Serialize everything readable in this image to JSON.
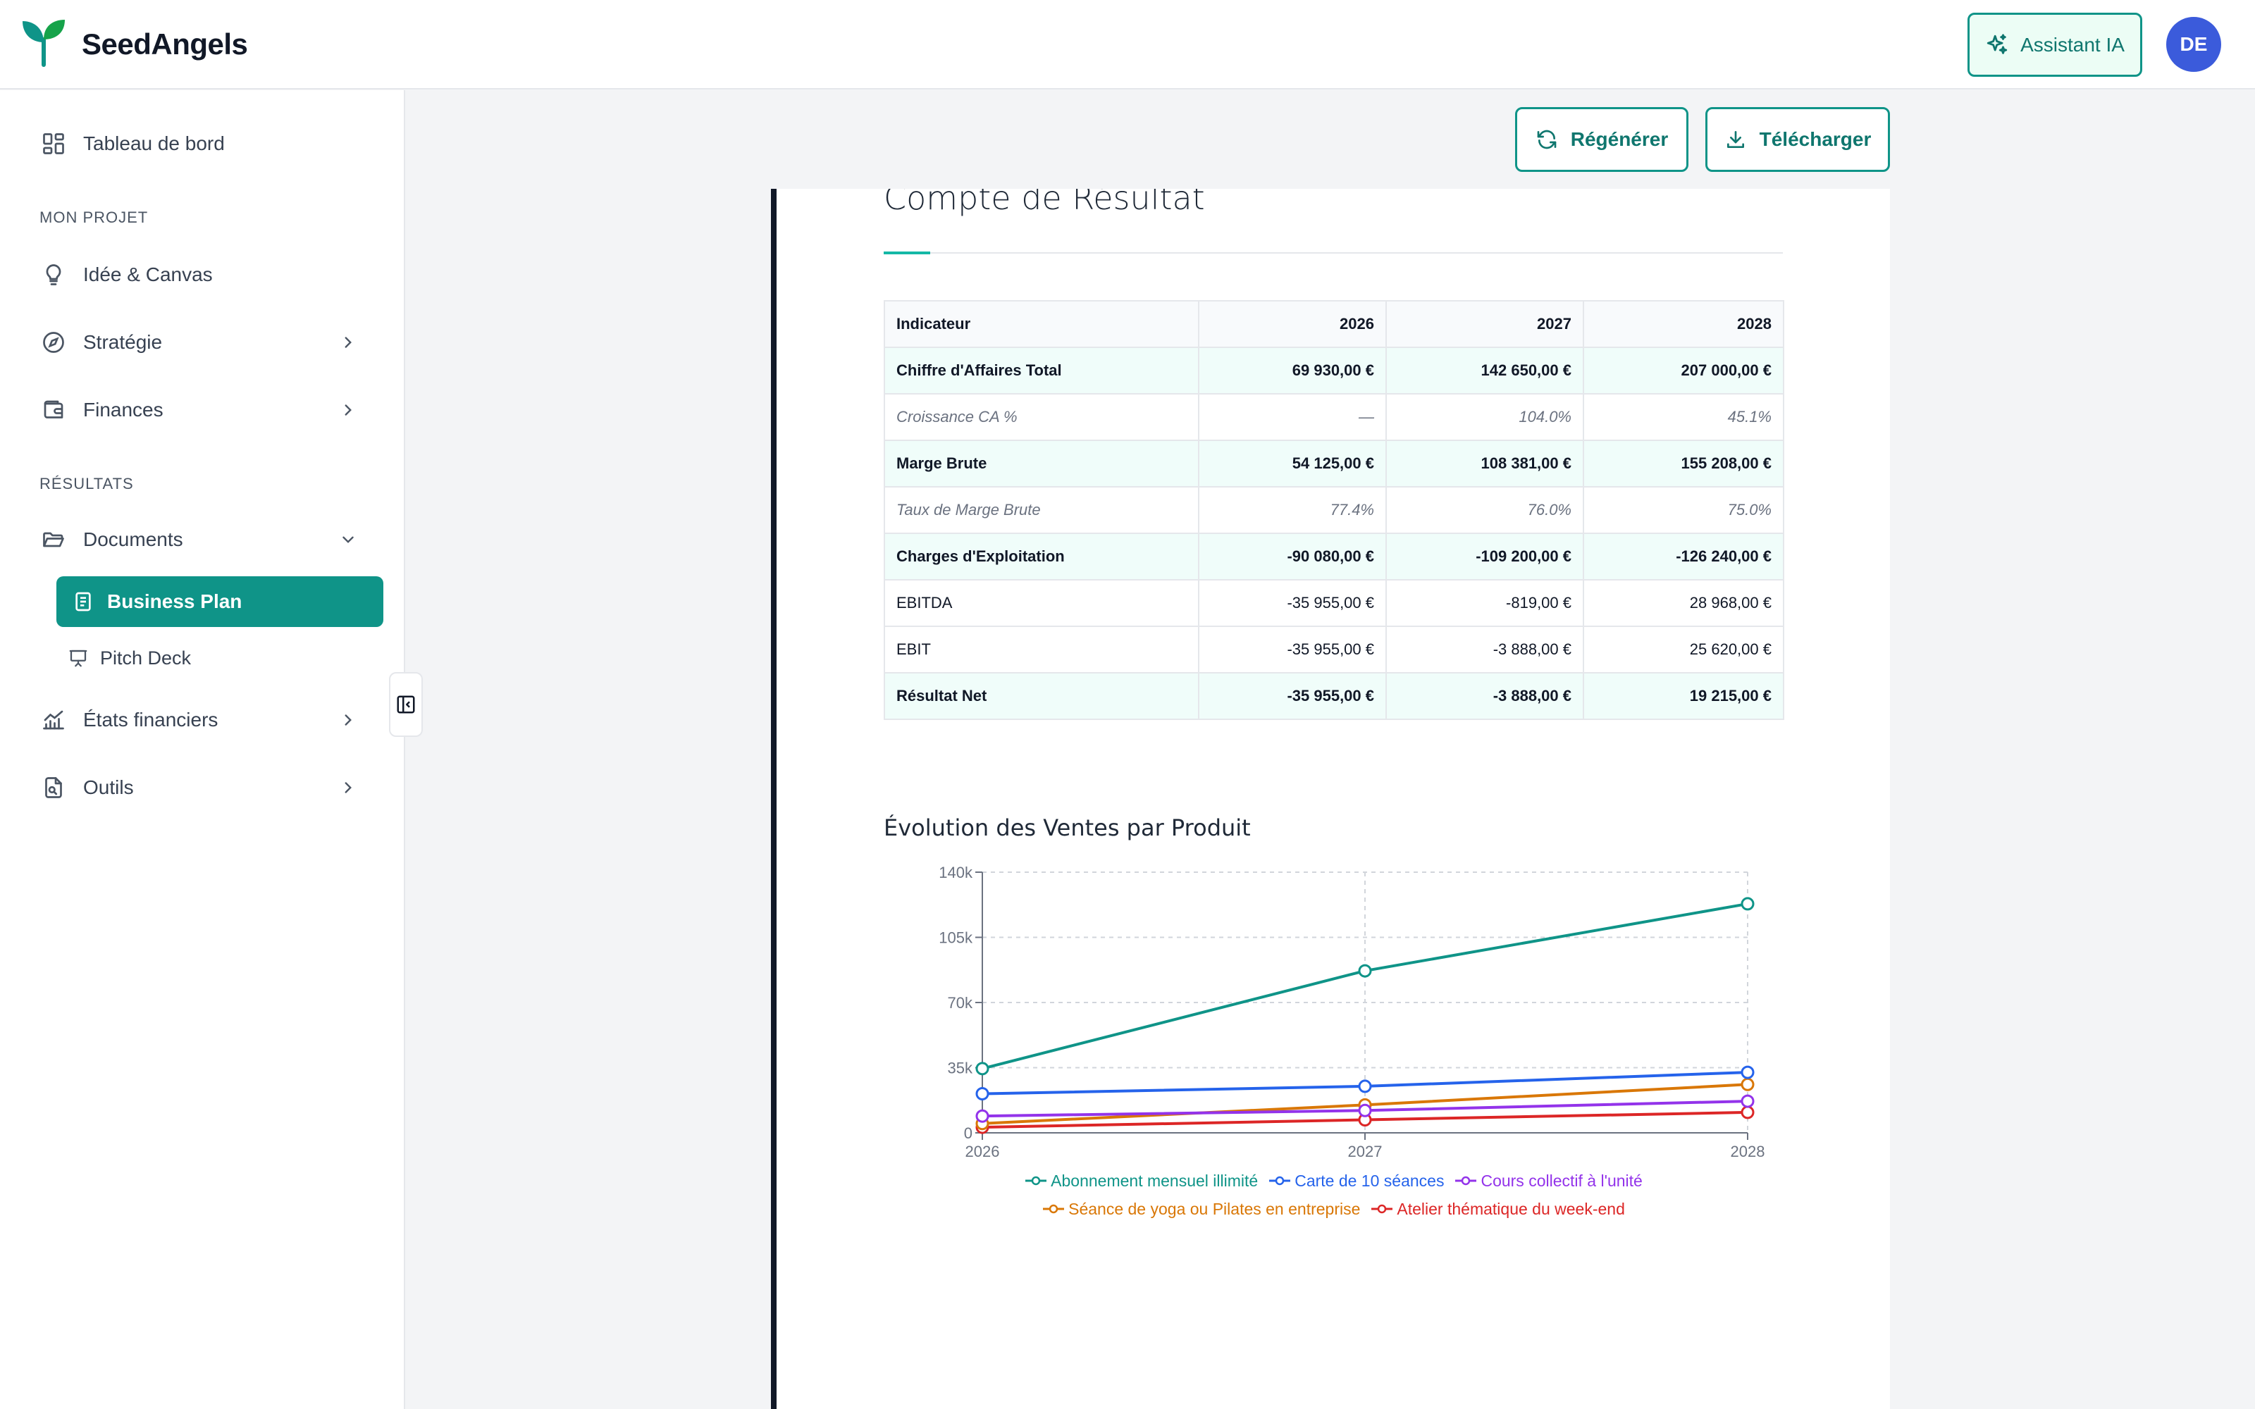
{
  "header": {
    "brand": "SeedAngels",
    "assistant_label": "Assistant IA",
    "avatar_initials": "DE",
    "brand_color": "#0f9488"
  },
  "sidebar": {
    "dashboard": "Tableau de bord",
    "section_project": "MON PROJET",
    "idea": "Idée & Canvas",
    "strategy": "Stratégie",
    "finances": "Finances",
    "section_results": "RÉSULTATS",
    "documents": "Documents",
    "business_plan": "Business Plan",
    "pitch_deck": "Pitch Deck",
    "financial_statements": "États financiers",
    "tools": "Outils"
  },
  "toolbar": {
    "regenerate": "Régénérer",
    "download": "Télécharger"
  },
  "document": {
    "section_title": "Compte de Résultat",
    "table": {
      "header": [
        "Indicateur",
        "2026",
        "2027",
        "2028"
      ],
      "rows": [
        {
          "style": "bold",
          "cells": [
            "Chiffre d'Affaires Total",
            "69 930,00 €",
            "142 650,00 €",
            "207 000,00 €"
          ]
        },
        {
          "style": "ital",
          "cells": [
            "Croissance CA %",
            "—",
            "104.0%",
            "45.1%"
          ]
        },
        {
          "style": "bold",
          "cells": [
            "Marge Brute",
            "54 125,00 €",
            "108 381,00 €",
            "155 208,00 €"
          ]
        },
        {
          "style": "ital",
          "cells": [
            "Taux de Marge Brute",
            "77.4%",
            "76.0%",
            "75.0%"
          ]
        },
        {
          "style": "bold",
          "cells": [
            "Charges d'Exploitation",
            "-90 080,00 €",
            "-109 200,00 €",
            "-126 240,00 €"
          ]
        },
        {
          "style": "plain",
          "cells": [
            "EBITDA",
            "-35 955,00 €",
            "-819,00 €",
            "28 968,00 €"
          ]
        },
        {
          "style": "plain",
          "cells": [
            "EBIT",
            "-35 955,00 €",
            "-3 888,00 €",
            "25 620,00 €"
          ]
        },
        {
          "style": "bold",
          "cells": [
            "Résultat Net",
            "-35 955,00 €",
            "-3 888,00 €",
            "19 215,00 €"
          ]
        }
      ]
    }
  },
  "chart_data": {
    "type": "line",
    "title": "Évolution des Ventes par Produit",
    "x": [
      "2026",
      "2027",
      "2028"
    ],
    "ylim": [
      0,
      140000
    ],
    "yticks": [
      0,
      35000,
      70000,
      105000,
      140000
    ],
    "ytick_labels": [
      "0",
      "35k",
      "70k",
      "105k",
      "140k"
    ],
    "grid": true,
    "legend": "bottom",
    "series": [
      {
        "name": "Abonnement mensuel illimité",
        "color": "#0f9488",
        "values": [
          34500,
          87000,
          123000
        ]
      },
      {
        "name": "Carte de 10 séances",
        "color": "#2563eb",
        "values": [
          21000,
          25000,
          32500
        ]
      },
      {
        "name": "Cours collectif à l'unité",
        "color": "#9333ea",
        "values": [
          9000,
          12000,
          17000
        ]
      },
      {
        "name": "Séance de yoga ou Pilates en entreprise",
        "color": "#d97706",
        "values": [
          5000,
          15000,
          26000
        ]
      },
      {
        "name": "Atelier thématique du week-end",
        "color": "#dc2626",
        "values": [
          3000,
          7000,
          11000
        ]
      }
    ]
  }
}
